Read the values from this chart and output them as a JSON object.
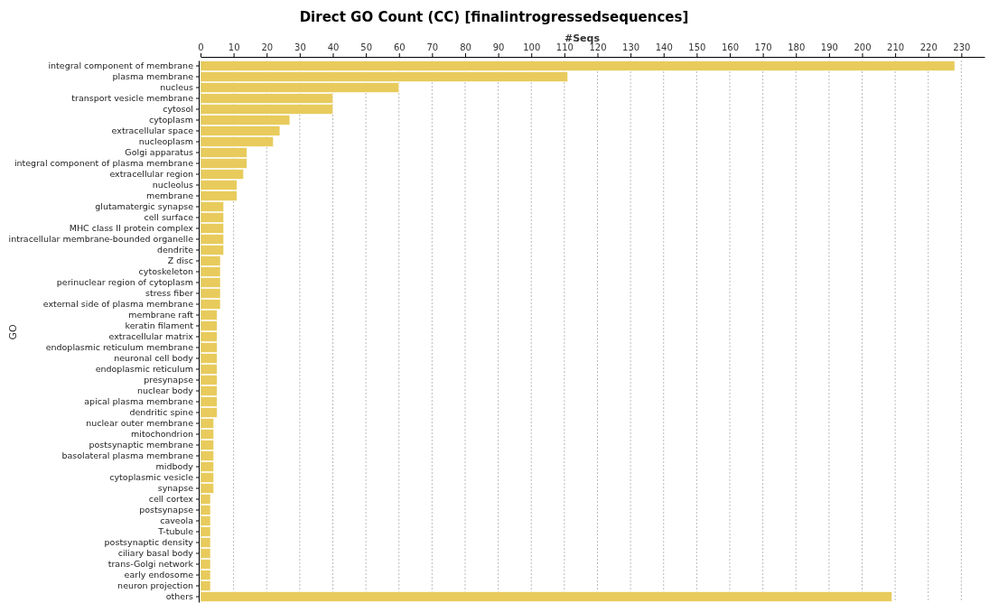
{
  "chart_data": {
    "type": "bar",
    "orientation": "horizontal",
    "title": "Direct GO Count (CC) [finalintrogressedsequences]",
    "xlabel": "#Seqs",
    "ylabel": "GO",
    "categories": [
      "integral component of membrane",
      "plasma membrane",
      "nucleus",
      "transport vesicle membrane",
      "cytosol",
      "cytoplasm",
      "extracellular space",
      "nucleoplasm",
      "Golgi apparatus",
      "integral component of plasma membrane",
      "extracellular region",
      "nucleolus",
      "membrane",
      "glutamatergic synapse",
      "cell surface",
      "MHC class II protein complex",
      "intracellular membrane-bounded organelle",
      "dendrite",
      "Z disc",
      "cytoskeleton",
      "perinuclear region of cytoplasm",
      "stress fiber",
      "external side of plasma membrane",
      "membrane raft",
      "keratin filament",
      "extracellular matrix",
      "endoplasmic reticulum membrane",
      "neuronal cell body",
      "endoplasmic reticulum",
      "presynapse",
      "nuclear body",
      "apical plasma membrane",
      "dendritic spine",
      "nuclear outer membrane",
      "mitochondrion",
      "postsynaptic membrane",
      "basolateral plasma membrane",
      "midbody",
      "cytoplasmic vesicle",
      "synapse",
      "cell cortex",
      "postsynapse",
      "caveola",
      "T-tubule",
      "postsynaptic density",
      "ciliary basal body",
      "trans-Golgi network",
      "early endosome",
      "neuron projection",
      "others"
    ],
    "values": [
      228,
      111,
      60,
      40,
      40,
      27,
      24,
      22,
      14,
      14,
      13,
      11,
      11,
      7,
      7,
      7,
      7,
      7,
      6,
      6,
      6,
      6,
      6,
      5,
      5,
      5,
      5,
      5,
      5,
      5,
      5,
      5,
      5,
      4,
      4,
      4,
      4,
      4,
      4,
      4,
      3,
      3,
      3,
      3,
      3,
      3,
      3,
      3,
      3,
      209
    ],
    "color": "#e8cb5c",
    "xlim": [
      0,
      237
    ],
    "xticks": [
      0,
      10,
      20,
      30,
      40,
      50,
      60,
      70,
      80,
      90,
      100,
      110,
      120,
      130,
      140,
      150,
      160,
      170,
      180,
      190,
      200,
      210,
      220,
      230
    ],
    "grid": "x"
  }
}
